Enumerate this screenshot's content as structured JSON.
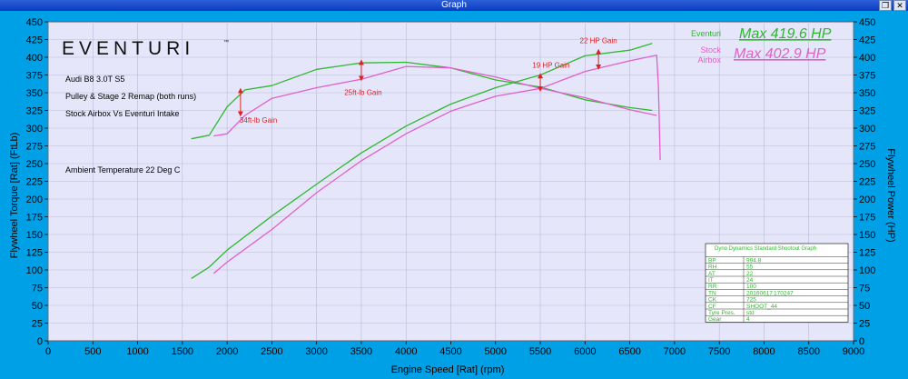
{
  "window": {
    "title": "Graph",
    "restore_icon": "restore-icon",
    "close_icon": "close-icon"
  },
  "colors": {
    "frame": "#00a0e6",
    "plot": "#e6e6fb",
    "eventuri": "#2eb82e",
    "stock": "#e060c8",
    "annotation": "#dd2222",
    "grid": "#b9b9d6"
  },
  "logo": {
    "text": "EVENTURI",
    "tm": "™"
  },
  "notes": [
    "Audi B8 3.0T S5",
    "Pulley & Stage 2 Remap (both runs)",
    "Stock Airbox Vs Eventuri Intake",
    "Ambient Temperature 22 Deg C"
  ],
  "legend": [
    {
      "label": "Eventuri",
      "max": "Max 419.6 HP",
      "color": "#2eb82e"
    },
    {
      "label": "Stock\nAirbox",
      "max": "Max 402.9 HP",
      "color": "#e060c8"
    }
  ],
  "annotations": [
    {
      "text": "34ft-lb Gain",
      "x": 2150,
      "y1": 353,
      "y2": 320,
      "tx": 2350,
      "ty": 308
    },
    {
      "text": "25ft-lb Gain",
      "x": 3500,
      "y1": 393,
      "y2": 370,
      "tx": 3520,
      "ty": 347
    },
    {
      "text": "19 HP Gain",
      "x": 5500,
      "y1": 374,
      "y2": 355,
      "tx": 5620,
      "ty": 385
    },
    {
      "text": "22 HP Gain",
      "x": 6150,
      "y1": 408,
      "y2": 386,
      "tx": 6150,
      "ty": 420
    }
  ],
  "info_table": {
    "header": "Dyno Dynamics Standard Shootout Graph",
    "rows": [
      [
        "BP",
        "994.8"
      ],
      [
        "RH",
        "55"
      ],
      [
        "AT",
        "22"
      ],
      [
        "IT",
        "24"
      ],
      [
        "RR",
        "100"
      ],
      [
        "TN",
        "20160617",
        "170247"
      ],
      [
        "CK",
        "725"
      ],
      [
        "CF",
        "SHOOT_44"
      ],
      [
        "Tyre Pres.",
        "std"
      ],
      [
        "Gear",
        "4"
      ]
    ]
  },
  "chart_data": {
    "type": "line",
    "xlabel": "Engine Speed [Rat] (rpm)",
    "ylabel_left": "Flywheel Torque [Rat] (FtLb)",
    "ylabel_right": "Flywheel Power (HP)",
    "xlim": [
      0,
      9000
    ],
    "ylim": [
      0,
      450
    ],
    "xticks": [
      "0",
      "500",
      "1000",
      "1500",
      "2000",
      "2500",
      "3000",
      "3500",
      "4000",
      "4500",
      "5000",
      "5500",
      "6000",
      "6500",
      "7000",
      "7500",
      "8000",
      "8500",
      "9000"
    ],
    "yticks": [
      "0",
      "25",
      "50",
      "75",
      "100",
      "125",
      "150",
      "175",
      "200",
      "225",
      "250",
      "275",
      "300",
      "325",
      "350",
      "375",
      "400",
      "425",
      "450"
    ],
    "grid": true,
    "series": [
      {
        "name": "Eventuri",
        "measure": "torque",
        "color": "#2eb82e",
        "x": [
          1600,
          1800,
          2000,
          2200,
          2500,
          3000,
          3500,
          4000,
          4500,
          5000,
          5500,
          6000,
          6500,
          6750
        ],
        "y": [
          285,
          290,
          330,
          354,
          360,
          383,
          392,
          393,
          385,
          368,
          358,
          340,
          329,
          325
        ]
      },
      {
        "name": "Stock Airbox",
        "measure": "torque",
        "color": "#e060c8",
        "x": [
          1850,
          2000,
          2200,
          2500,
          3000,
          3500,
          4000,
          4500,
          5000,
          5500,
          6000,
          6500,
          6800
        ],
        "y": [
          289,
          292,
          318,
          342,
          357,
          369,
          387,
          385,
          372,
          356,
          343,
          326,
          318
        ]
      },
      {
        "name": "Eventuri",
        "measure": "power",
        "color": "#2eb82e",
        "x": [
          1600,
          1800,
          2000,
          2500,
          3000,
          3500,
          4000,
          4500,
          5000,
          5500,
          6000,
          6500,
          6750
        ],
        "y": [
          88,
          104,
          128,
          176,
          221,
          265,
          303,
          334,
          357,
          375,
          402,
          410,
          419.6
        ]
      },
      {
        "name": "Stock Airbox",
        "measure": "power",
        "color": "#e060c8",
        "x": [
          1850,
          2000,
          2500,
          3000,
          3500,
          4000,
          4500,
          5000,
          5500,
          6000,
          6500,
          6800,
          6820,
          6840
        ],
        "y": [
          95,
          111,
          157,
          209,
          254,
          292,
          324,
          345,
          356,
          380,
          395,
          402.9,
          360,
          255
        ]
      }
    ]
  }
}
